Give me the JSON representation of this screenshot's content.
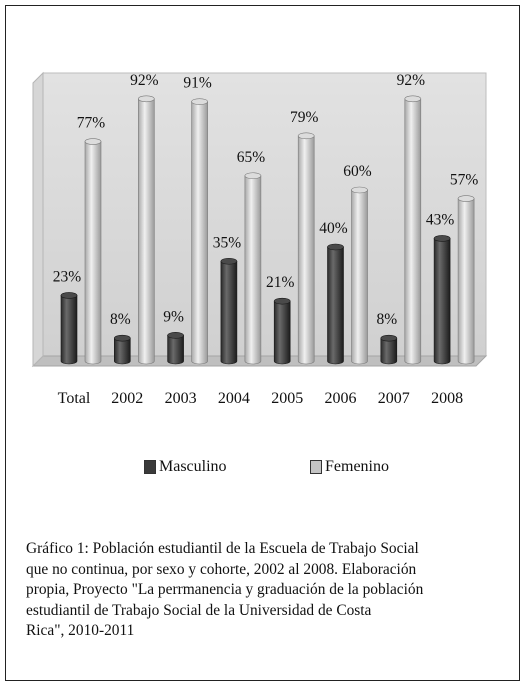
{
  "chart_data": {
    "type": "bar",
    "categories": [
      "Total",
      "2002",
      "2003",
      "2004",
      "2005",
      "2006",
      "2007",
      "2008"
    ],
    "series": [
      {
        "name": "Masculino",
        "values": [
          23,
          8,
          9,
          35,
          21,
          40,
          8,
          43
        ],
        "labels": [
          "23%",
          "8%",
          "9%",
          "35%",
          "21%",
          "40%",
          "8%",
          "43%"
        ],
        "color": "#3a3a3a"
      },
      {
        "name": "Femenino",
        "values": [
          77,
          92,
          91,
          65,
          79,
          60,
          92,
          57
        ],
        "labels": [
          "77%",
          "92%",
          "91%",
          "65%",
          "79%",
          "60%",
          "92%",
          "57%"
        ],
        "color": "#c4c4c4"
      }
    ],
    "ylim": [
      0,
      100
    ],
    "grid": false,
    "legend_placement": "bottom",
    "style": "3d-cylinder"
  },
  "caption": {
    "lines": [
      "Gráfico 1: Población estudiantil de la Escuela de Trabajo Social",
      "que no continua, por sexo y cohorte,  2002 al 2008.  Elaboración",
      "propia, Proyecto \"La  perrmanencia y graduación de la población",
      "estudiantil de Trabajo Social de la Universidad de Costa",
      "Rica\", 2010-2011"
    ]
  }
}
